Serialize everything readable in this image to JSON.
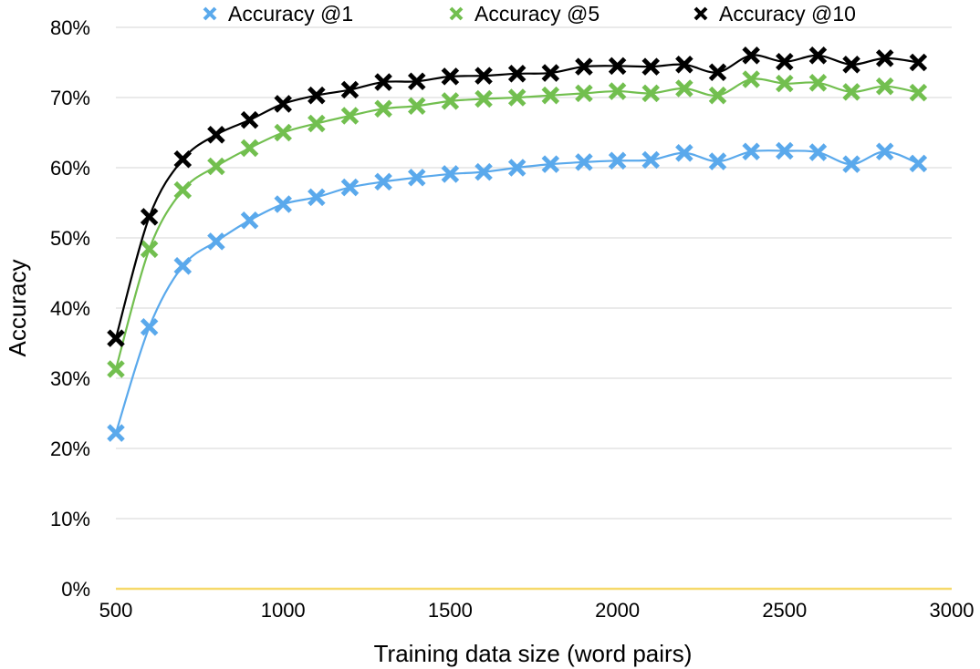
{
  "chart_data": {
    "type": "line",
    "xlabel": "Training data size (word pairs)",
    "ylabel": "Accuracy",
    "xlim": [
      500,
      3000
    ],
    "ylim": [
      0,
      0.8
    ],
    "x_ticks": [
      "500",
      "1000",
      "1500",
      "2000",
      "2500",
      "3000"
    ],
    "y_ticks": [
      "0%",
      "10%",
      "20%",
      "30%",
      "40%",
      "50%",
      "60%",
      "70%",
      "80%"
    ],
    "grid": "horizontal",
    "legend_position": "top",
    "baseline_color": "#f6d96b",
    "x": [
      500,
      600,
      700,
      800,
      900,
      1000,
      1100,
      1200,
      1300,
      1400,
      1500,
      1600,
      1700,
      1800,
      1900,
      2000,
      2100,
      2200,
      2300,
      2400,
      2500,
      2600,
      2700,
      2800,
      2900
    ],
    "series": [
      {
        "name": "Accuracy @1",
        "color": "#5aa9ec",
        "marker": "x",
        "values": [
          0.222,
          0.373,
          0.46,
          0.495,
          0.525,
          0.548,
          0.558,
          0.572,
          0.58,
          0.586,
          0.591,
          0.594,
          0.6,
          0.605,
          0.608,
          0.61,
          0.611,
          0.621,
          0.609,
          0.623,
          0.624,
          0.622,
          0.605,
          0.623,
          0.606
        ]
      },
      {
        "name": "Accuracy @5",
        "color": "#72bf4f",
        "marker": "x",
        "values": [
          0.313,
          0.484,
          0.568,
          0.602,
          0.628,
          0.65,
          0.663,
          0.674,
          0.684,
          0.688,
          0.695,
          0.698,
          0.7,
          0.703,
          0.706,
          0.709,
          0.706,
          0.713,
          0.703,
          0.726,
          0.72,
          0.721,
          0.708,
          0.716,
          0.707
        ]
      },
      {
        "name": "Accuracy @10",
        "color": "#000000",
        "marker": "x",
        "values": [
          0.357,
          0.53,
          0.612,
          0.647,
          0.668,
          0.691,
          0.703,
          0.711,
          0.722,
          0.723,
          0.73,
          0.731,
          0.734,
          0.735,
          0.744,
          0.745,
          0.744,
          0.747,
          0.736,
          0.76,
          0.751,
          0.76,
          0.747,
          0.756,
          0.75
        ]
      }
    ]
  }
}
